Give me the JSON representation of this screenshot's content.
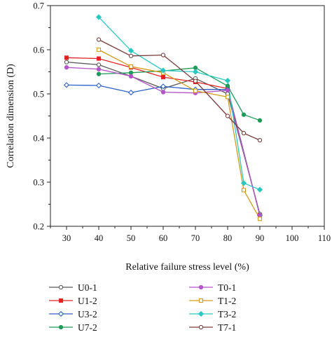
{
  "chart_data": {
    "type": "line",
    "title": "",
    "xlabel": "Relative failure stress level (%)",
    "ylabel": "Correlation dimension (D)",
    "xlim": [
      25,
      110
    ],
    "ylim": [
      0.2,
      0.7
    ],
    "xticks": [
      30,
      40,
      50,
      60,
      70,
      80,
      90,
      100,
      110
    ],
    "yticks": [
      0.2,
      0.3,
      0.4,
      0.5,
      0.6,
      0.7
    ],
    "xtick_labels": [
      "30",
      "40",
      "50",
      "60",
      "70",
      "80",
      "90",
      "100",
      "110"
    ],
    "ytick_labels": [
      "0.2",
      "0.3",
      "0.4",
      "0.5",
      "0.6",
      "0.7"
    ],
    "grid": false,
    "legend_position": "bottom, two columns",
    "series": [
      {
        "name": "U0-1",
        "color": "#595959",
        "marker": "open-circle",
        "x": [
          30,
          40,
          50,
          60,
          70,
          80,
          90
        ],
        "y": [
          0.572,
          0.566,
          0.54,
          0.512,
          0.535,
          0.5,
          0.228
        ]
      },
      {
        "name": "U1-2",
        "color": "#e52222",
        "marker": "filled-square",
        "x": [
          30,
          40,
          50,
          60,
          70,
          80,
          90
        ],
        "y": [
          0.582,
          0.58,
          0.56,
          0.538,
          0.527,
          0.512,
          0.225
        ]
      },
      {
        "name": "U3-2",
        "color": "#2d62c9",
        "marker": "open-diamond",
        "x": [
          30,
          40,
          50,
          60,
          70,
          80,
          90
        ],
        "y": [
          0.52,
          0.519,
          0.503,
          0.517,
          0.51,
          0.51,
          0.225
        ]
      },
      {
        "name": "U7-2",
        "color": "#1f9a59",
        "marker": "filled-circle",
        "x": [
          40,
          50,
          60,
          70,
          80,
          85,
          90
        ],
        "y": [
          0.545,
          0.548,
          0.552,
          0.559,
          0.518,
          0.453,
          0.44
        ]
      },
      {
        "name": "T0-1",
        "color": "#b455c9",
        "marker": "filled-circle",
        "x": [
          30,
          40,
          50,
          60,
          70,
          80,
          90
        ],
        "y": [
          0.56,
          0.556,
          0.54,
          0.504,
          0.502,
          0.508,
          0.225
        ]
      },
      {
        "name": "T1-2",
        "color": "#d49a16",
        "marker": "open-square",
        "x": [
          40,
          50,
          60,
          70,
          80,
          85,
          90
        ],
        "y": [
          0.6,
          0.562,
          0.548,
          0.507,
          0.493,
          0.282,
          0.217
        ]
      },
      {
        "name": "T3-2",
        "color": "#27c8c4",
        "marker": "filled-diamond",
        "x": [
          40,
          50,
          60,
          70,
          80,
          85,
          90
        ],
        "y": [
          0.674,
          0.598,
          0.553,
          0.55,
          0.53,
          0.298,
          0.283
        ]
      },
      {
        "name": "T7-1",
        "color": "#7a3b3b",
        "marker": "open-circle",
        "x": [
          40,
          50,
          60,
          70,
          80,
          85,
          90
        ],
        "y": [
          0.623,
          0.586,
          0.588,
          0.529,
          0.45,
          0.411,
          0.395
        ]
      }
    ]
  }
}
